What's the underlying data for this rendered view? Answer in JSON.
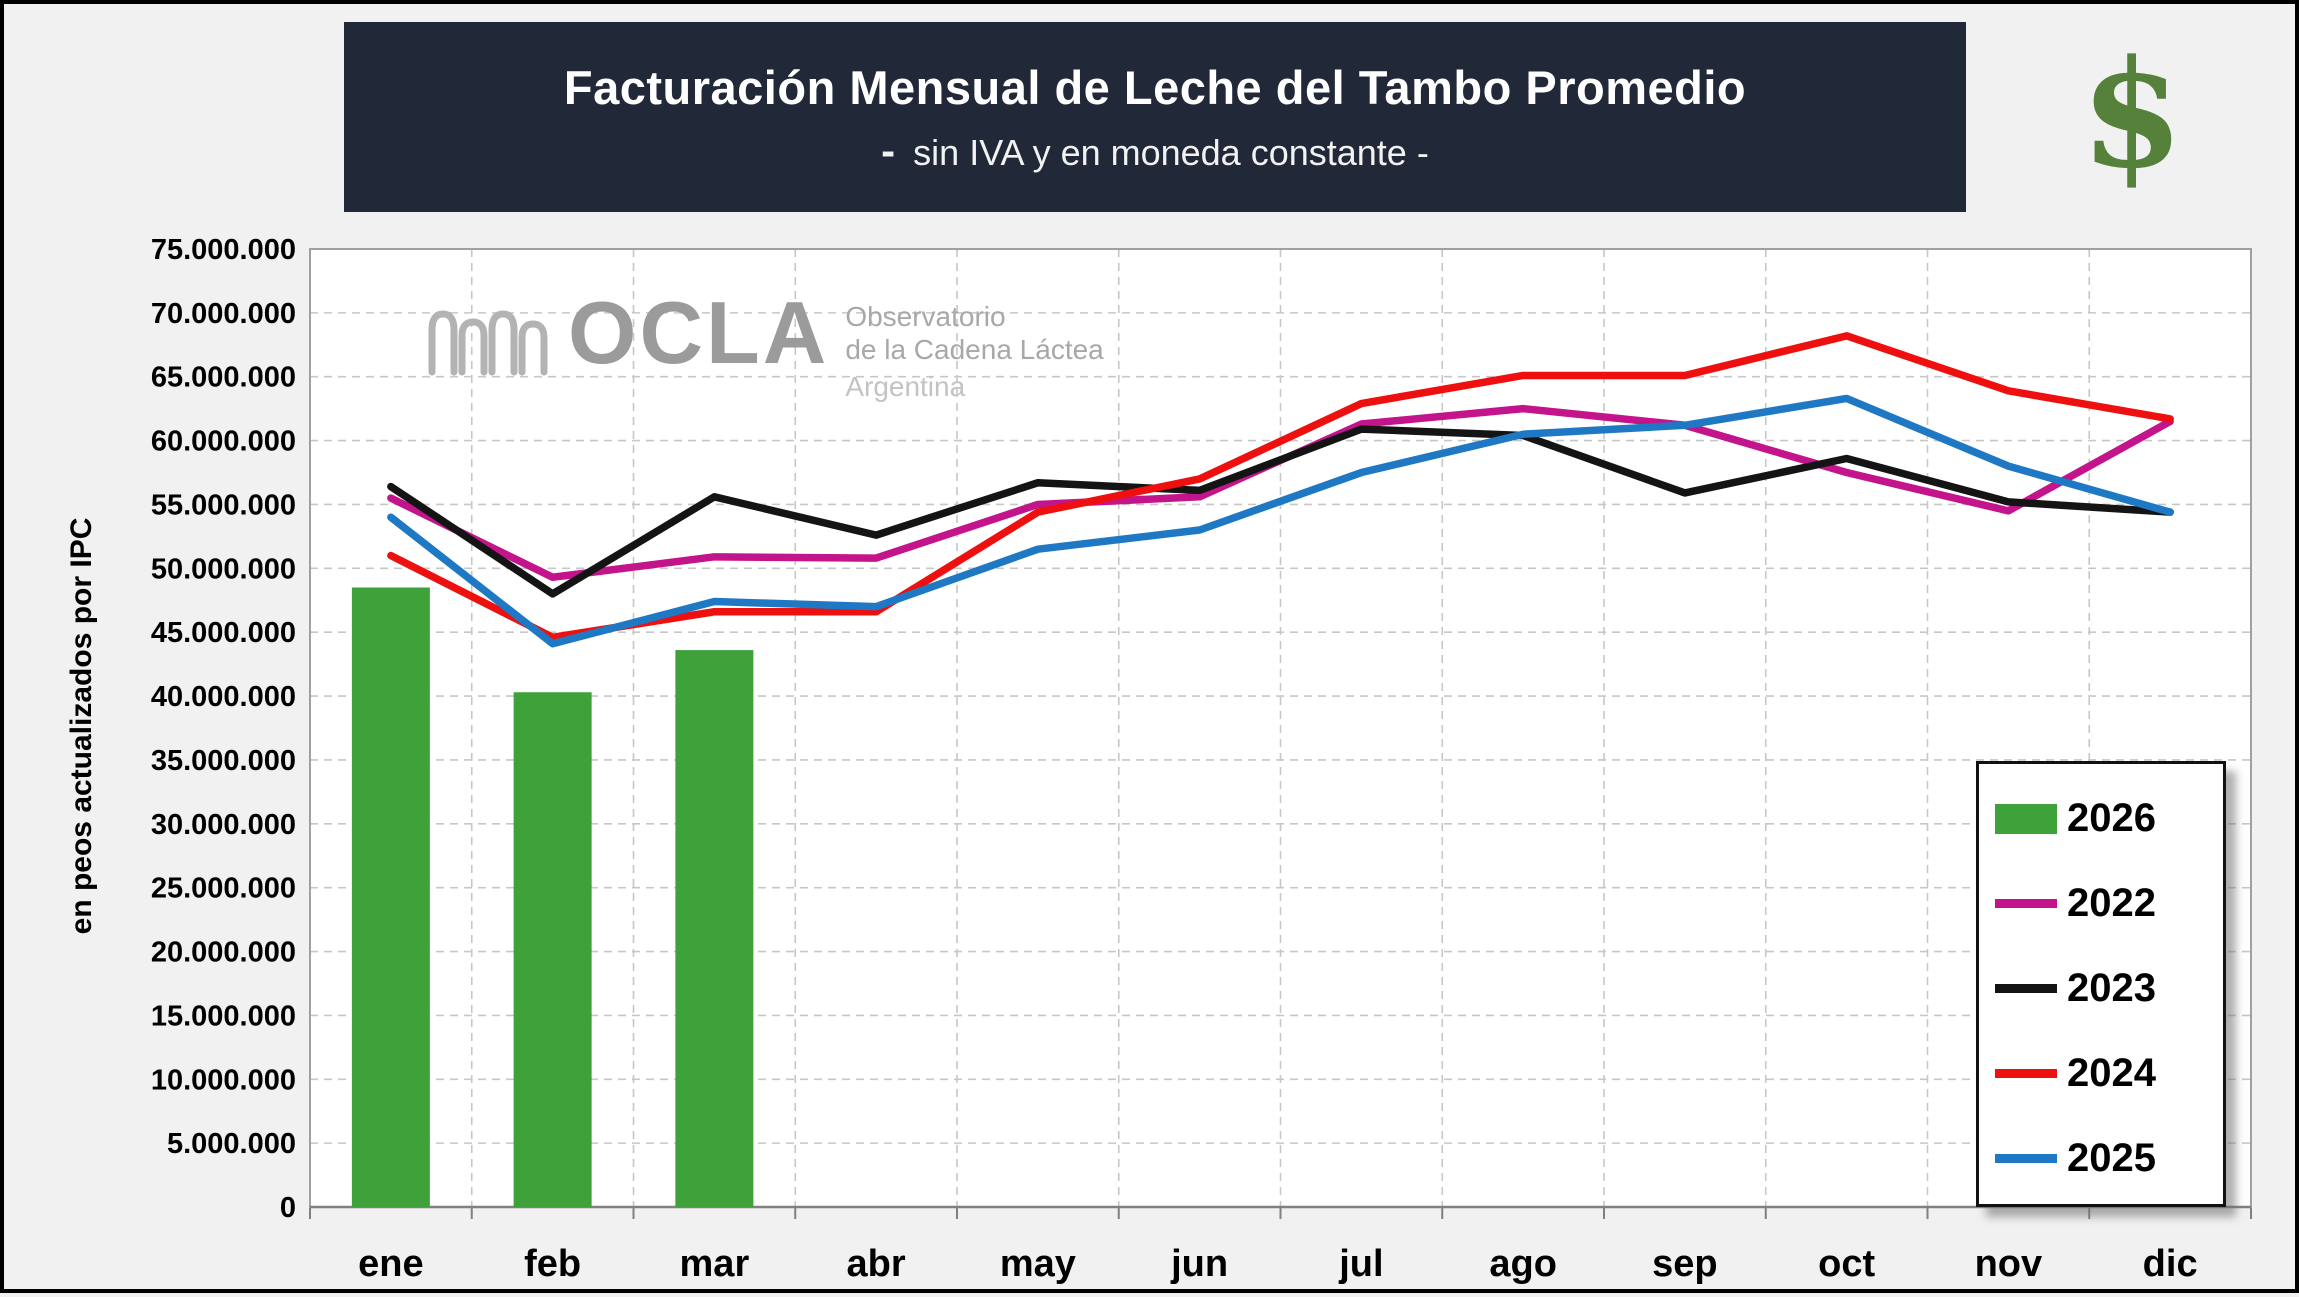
{
  "header": {
    "title": "Facturación Mensual de Leche del Tambo Promedio",
    "subtitle_dash": "-",
    "subtitle": " sin IVA y en moneda constante -",
    "currency_icon": "$"
  },
  "watermark": {
    "name": "OCLA",
    "line1": "Observatorio",
    "line2": "de la Cadena Láctea",
    "line3": "Argentina"
  },
  "colors": {
    "title_bg": "#212838",
    "title_text": "#ffffff",
    "frame_bg": "#f1f1f1",
    "plot_bg": "#ffffff",
    "grid": "#c7c7c7",
    "plot_border": "#a0a0a0",
    "axis_line": "#808080",
    "dollar_green": "#55813a",
    "watermark_gray": "#9b9b9b"
  },
  "chart_data": {
    "type": "combo",
    "categories": [
      "ene",
      "feb",
      "mar",
      "abr",
      "may",
      "jun",
      "jul",
      "ago",
      "sep",
      "oct",
      "nov",
      "dic"
    ],
    "title": "Facturación Mensual de Leche del Tambo Promedio",
    "subtitle": "- sin IVA y en moneda constante -",
    "xlabel": "",
    "ylabel": "en peos actualizados por IPC",
    "ylim": [
      0,
      75000000
    ],
    "ytick_step": 5000000,
    "grid": true,
    "legend_position": "bottom-right",
    "series": [
      {
        "name": "2026",
        "type": "bar",
        "color": "#3fa13a",
        "values": [
          48500000,
          40300000,
          43600000,
          null,
          null,
          null,
          null,
          null,
          null,
          null,
          null,
          null
        ]
      },
      {
        "name": "2022",
        "type": "line",
        "color": "#c4148c",
        "values": [
          55500000,
          49300000,
          50900000,
          50800000,
          55000000,
          55600000,
          61300000,
          62500000,
          61200000,
          57500000,
          54500000,
          61500000
        ]
      },
      {
        "name": "2023",
        "type": "line",
        "color": "#141414",
        "values": [
          56400000,
          48000000,
          55600000,
          52600000,
          56700000,
          56100000,
          60900000,
          60400000,
          55900000,
          58600000,
          55200000,
          54400000
        ]
      },
      {
        "name": "2024",
        "type": "line",
        "color": "#ee0f0f",
        "values": [
          51000000,
          44600000,
          46600000,
          46600000,
          54400000,
          57000000,
          62900000,
          65100000,
          65100000,
          68200000,
          63900000,
          61700000
        ]
      },
      {
        "name": "2025",
        "type": "line",
        "color": "#1f78c4",
        "values": [
          54000000,
          44100000,
          47400000,
          47000000,
          51500000,
          53000000,
          57500000,
          60500000,
          61200000,
          63300000,
          58000000,
          54400000
        ]
      }
    ]
  }
}
